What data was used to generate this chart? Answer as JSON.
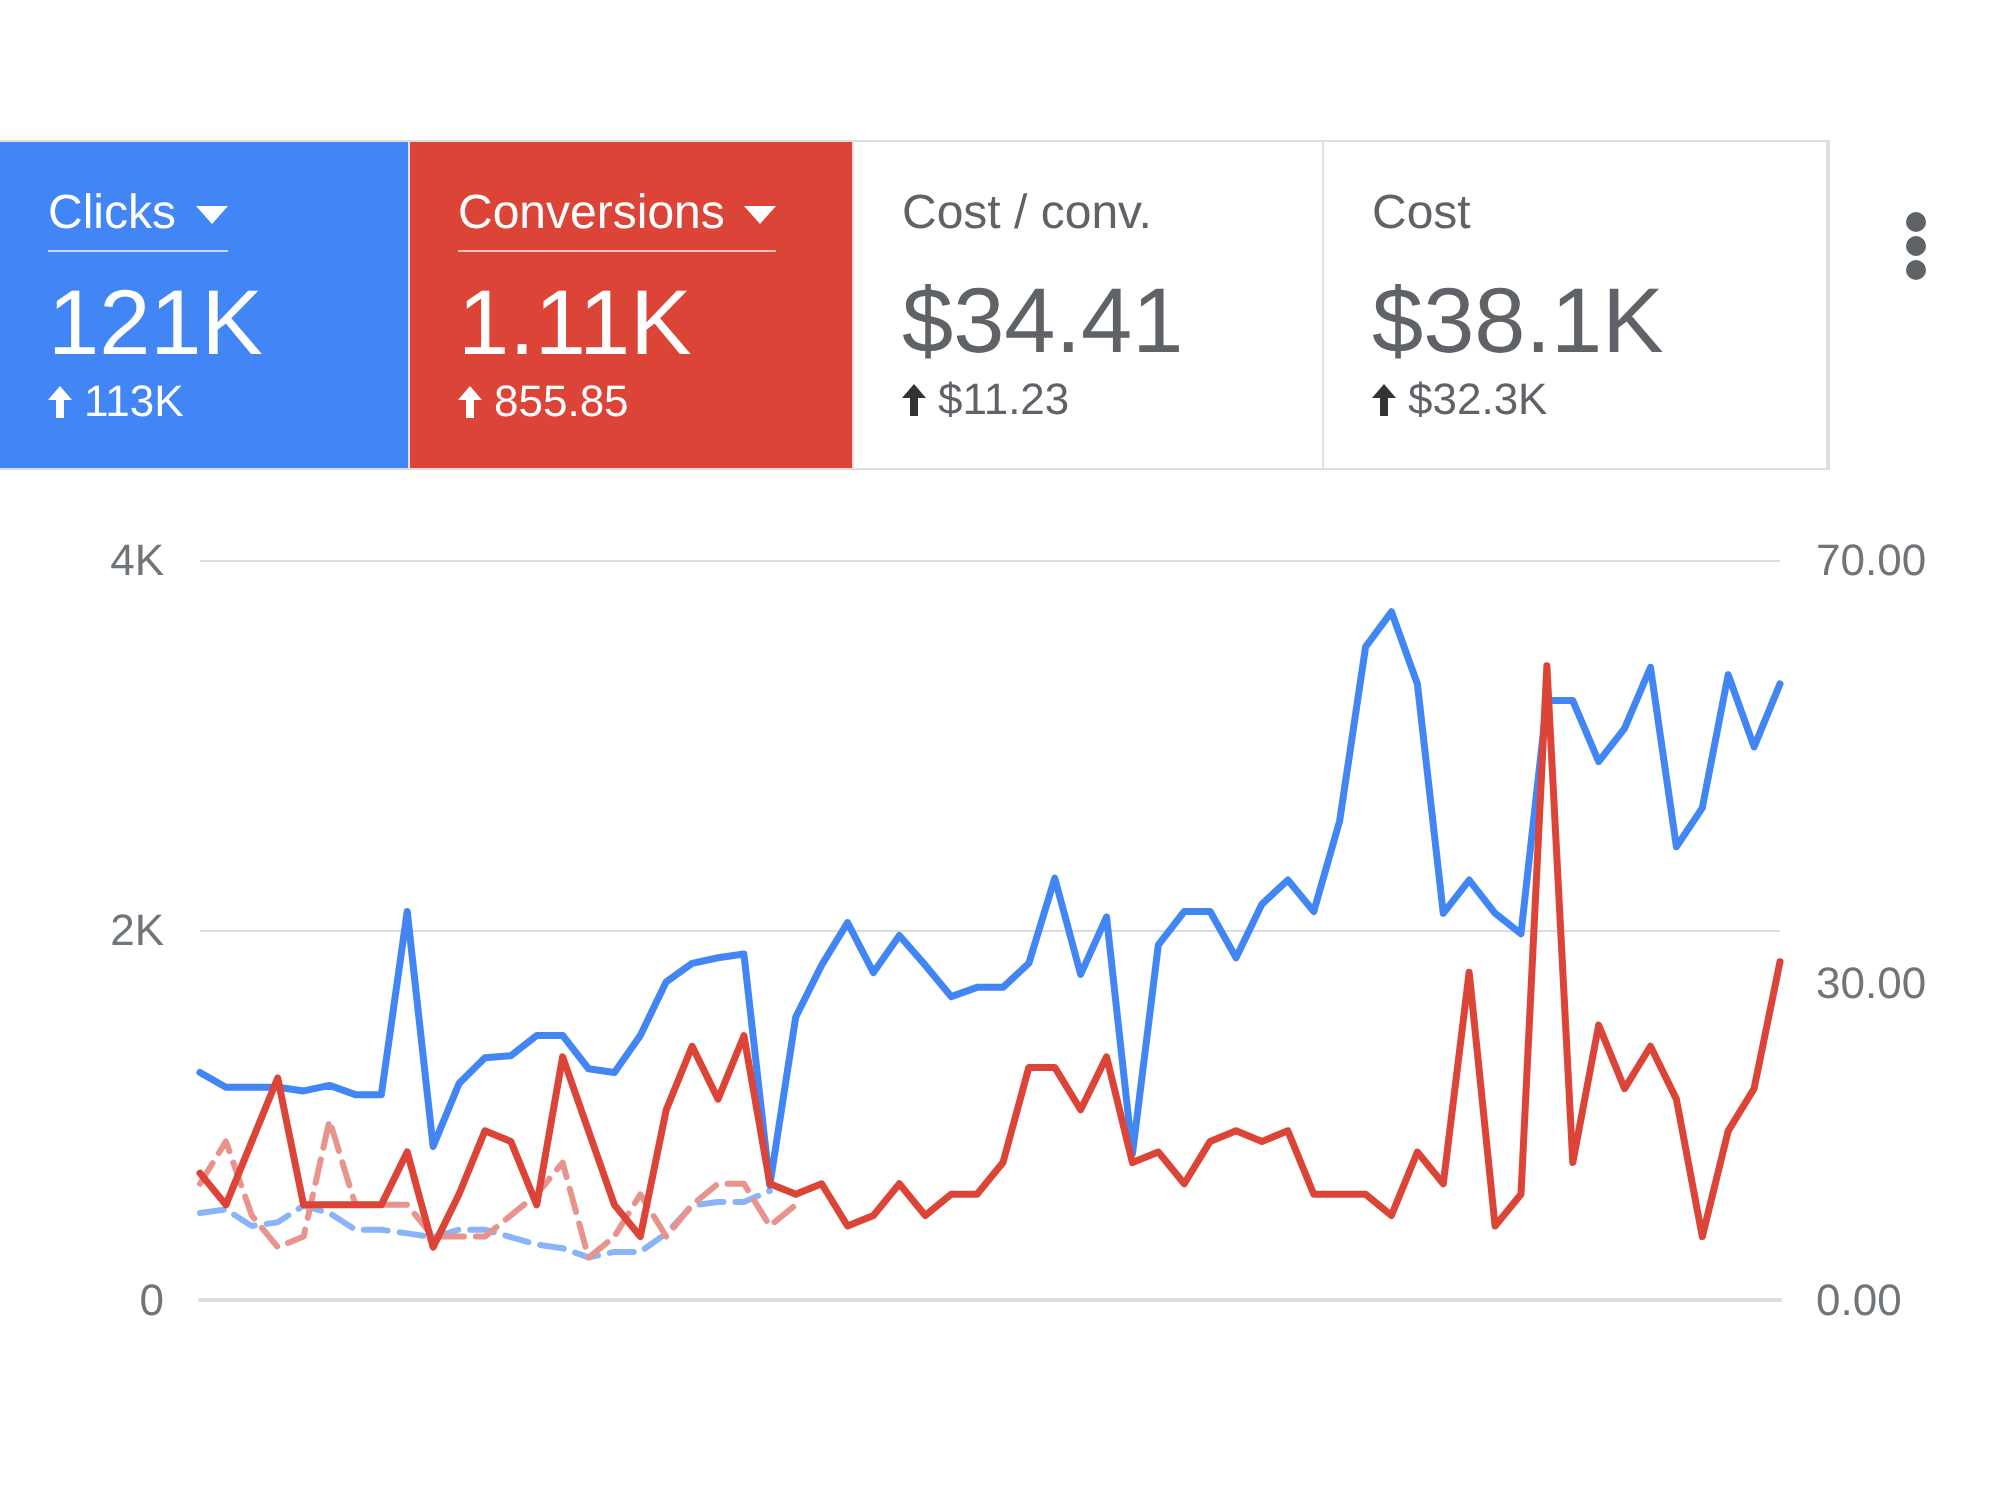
{
  "chart_data": [
    {
      "type": "other",
      "annotations": [
        "Clicks",
        "121K",
        "113K",
        "Conversions",
        "1.11K",
        "855.85",
        "Cost / conv.",
        "$34.41",
        "$11.23",
        "Cost",
        "$38.1K",
        "$32.3K"
      ]
    },
    {
      "type": "line",
      "categories": [
        null,
        null,
        null,
        null,
        null,
        null,
        null,
        null,
        null,
        null,
        null,
        null,
        null,
        null,
        null,
        null,
        null,
        null,
        null,
        null,
        null,
        null,
        null,
        null,
        null,
        null,
        null,
        null,
        null,
        null,
        null,
        null,
        null,
        null,
        null,
        null,
        null,
        null,
        null,
        null,
        null,
        null,
        null,
        null,
        null,
        null,
        null,
        null,
        null,
        null,
        null,
        null,
        null,
        null,
        null,
        null,
        null,
        null,
        null,
        null,
        null,
        null
      ],
      "series": [
        {
          "color": "#8ab4f8",
          "line_style": "dashed",
          "values": [
            470,
            490,
            400,
            420,
            510,
            470,
            380,
            380,
            360,
            340,
            380,
            380,
            340,
            300,
            280,
            230,
            260,
            260,
            360,
            510,
            530,
            530,
            590,
            null,
            null,
            null,
            null,
            null,
            null,
            null,
            null,
            null,
            null,
            null,
            null,
            null,
            null,
            null,
            null,
            null,
            null,
            null,
            null,
            null,
            null,
            null,
            null,
            null,
            null,
            null,
            null,
            null,
            null,
            null,
            null,
            null,
            null,
            null,
            null,
            null,
            null,
            null
          ]
        },
        {
          "color": "#e8948d",
          "line_style": "dashed",
          "axis": "y2",
          "values": [
            11,
            15,
            8,
            5,
            6,
            17,
            9,
            9,
            9,
            6,
            6,
            6,
            8,
            10,
            13,
            4,
            6,
            10,
            6,
            9,
            11,
            11,
            7,
            9,
            null,
            null,
            null,
            null,
            null,
            null,
            null,
            null,
            null,
            null,
            null,
            null,
            null,
            null,
            null,
            null,
            null,
            null,
            null,
            null,
            null,
            null,
            null,
            null,
            null,
            null,
            null,
            null,
            null,
            null,
            null,
            null,
            null,
            null,
            null,
            null,
            null,
            null
          ]
        },
        {
          "color": "#4285f4",
          "line_style": "solid",
          "values": [
            1230,
            1150,
            1150,
            1150,
            1130,
            1160,
            1110,
            1110,
            2100,
            830,
            1170,
            1310,
            1320,
            1430,
            1430,
            1250,
            1230,
            1430,
            1720,
            1820,
            1850,
            1870,
            620,
            1530,
            1810,
            2040,
            1770,
            1970,
            1810,
            1640,
            1690,
            1690,
            1820,
            2280,
            1760,
            2070,
            790,
            1920,
            2100,
            2100,
            1850,
            2140,
            2270,
            2100,
            2590,
            3530,
            3720,
            3330,
            2090,
            2270,
            2090,
            1980,
            3240,
            3240,
            2910,
            3090,
            3420,
            2450,
            2660,
            3380,
            2990,
            3330
          ]
        },
        {
          "color": "#db4437",
          "line_style": "solid",
          "axis": "y2",
          "values": [
            12,
            9,
            15,
            21,
            9,
            9,
            9,
            9,
            14,
            5,
            10,
            16,
            15,
            9,
            23,
            16,
            9,
            6,
            18,
            24,
            19,
            25,
            11,
            10,
            11,
            7,
            8,
            11,
            8,
            10,
            10,
            13,
            22,
            22,
            18,
            23,
            13,
            14,
            11,
            15,
            16,
            15,
            16,
            10,
            10,
            10,
            8,
            14,
            11,
            31,
            7,
            10,
            60,
            13,
            26,
            20,
            24,
            19,
            6,
            16,
            20,
            32
          ]
        }
      ],
      "ylim": [
        0,
        4000
      ],
      "yticks": [
        0,
        {
          "value": 2000,
          "label": "2K"
        },
        {
          "value": 4000,
          "label": "4K"
        }
      ],
      "y2lim": [
        0,
        70
      ],
      "y2ticks": [
        {
          "value": 0,
          "label": "0.00"
        },
        {
          "value": 30,
          "label": "30.00"
        },
        {
          "value": 70,
          "label": "70.00"
        }
      ],
      "grid": "y",
      "marker": "none"
    }
  ]
}
